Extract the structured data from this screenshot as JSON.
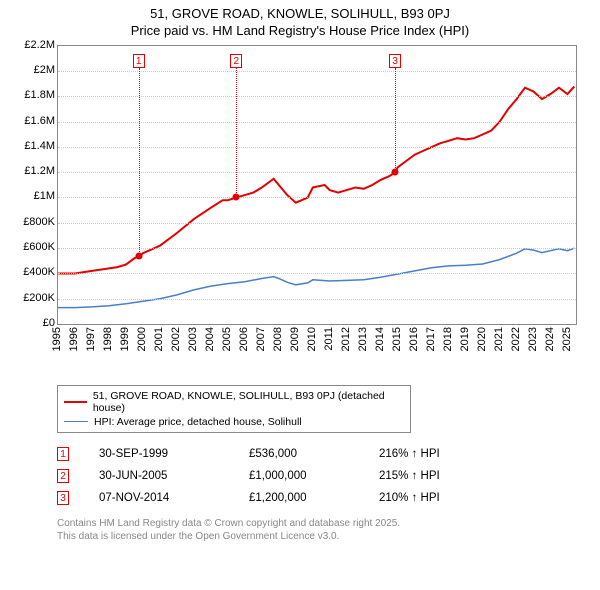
{
  "title": {
    "line1": "51, GROVE ROAD, KNOWLE, SOLIHULL, B93 0PJ",
    "line2": "Price paid vs. HM Land Registry's House Price Index (HPI)"
  },
  "chart": {
    "type": "line",
    "background_color": "#ffffff",
    "grid_color": "#cccccc",
    "axis_color": "#888888",
    "x_range": [
      1995,
      2025.5
    ],
    "y_range": [
      0,
      2200000
    ],
    "y_ticks": [
      {
        "v": 0,
        "label": "£0"
      },
      {
        "v": 200000,
        "label": "£200K"
      },
      {
        "v": 400000,
        "label": "£400K"
      },
      {
        "v": 600000,
        "label": "£600K"
      },
      {
        "v": 800000,
        "label": "£800K"
      },
      {
        "v": 1000000,
        "label": "£1M"
      },
      {
        "v": 1200000,
        "label": "£1.2M"
      },
      {
        "v": 1400000,
        "label": "£1.4M"
      },
      {
        "v": 1600000,
        "label": "£1.6M"
      },
      {
        "v": 1800000,
        "label": "£1.8M"
      },
      {
        "v": 2000000,
        "label": "£2M"
      },
      {
        "v": 2200000,
        "label": "£2.2M"
      }
    ],
    "x_ticks": [
      {
        "v": 1995,
        "label": "1995"
      },
      {
        "v": 1996,
        "label": "1996"
      },
      {
        "v": 1997,
        "label": "1997"
      },
      {
        "v": 1998,
        "label": "1998"
      },
      {
        "v": 1999,
        "label": "1999"
      },
      {
        "v": 2000,
        "label": "2000"
      },
      {
        "v": 2001,
        "label": "2001"
      },
      {
        "v": 2002,
        "label": "2002"
      },
      {
        "v": 2003,
        "label": "2003"
      },
      {
        "v": 2004,
        "label": "2004"
      },
      {
        "v": 2005,
        "label": "2005"
      },
      {
        "v": 2006,
        "label": "2006"
      },
      {
        "v": 2007,
        "label": "2007"
      },
      {
        "v": 2008,
        "label": "2008"
      },
      {
        "v": 2009,
        "label": "2009"
      },
      {
        "v": 2010,
        "label": "2010"
      },
      {
        "v": 2011,
        "label": "2011"
      },
      {
        "v": 2012,
        "label": "2012"
      },
      {
        "v": 2013,
        "label": "2013"
      },
      {
        "v": 2014,
        "label": "2014"
      },
      {
        "v": 2015,
        "label": "2015"
      },
      {
        "v": 2016,
        "label": "2016"
      },
      {
        "v": 2017,
        "label": "2017"
      },
      {
        "v": 2018,
        "label": "2018"
      },
      {
        "v": 2019,
        "label": "2019"
      },
      {
        "v": 2020,
        "label": "2020"
      },
      {
        "v": 2021,
        "label": "2021"
      },
      {
        "v": 2022,
        "label": "2022"
      },
      {
        "v": 2023,
        "label": "2023"
      },
      {
        "v": 2024,
        "label": "2024"
      },
      {
        "v": 2025,
        "label": "2025"
      }
    ],
    "series": [
      {
        "id": "property",
        "color": "#e20000",
        "line_width": 2,
        "points": [
          [
            1995,
            400000
          ],
          [
            1996,
            400000
          ],
          [
            1997,
            420000
          ],
          [
            1998,
            440000
          ],
          [
            1998.5,
            450000
          ],
          [
            1999,
            470000
          ],
          [
            1999.5,
            520000
          ],
          [
            1999.75,
            536000
          ],
          [
            2000,
            560000
          ],
          [
            2001,
            620000
          ],
          [
            2002,
            720000
          ],
          [
            2003,
            830000
          ],
          [
            2004,
            920000
          ],
          [
            2004.7,
            980000
          ],
          [
            2005,
            980000
          ],
          [
            2005.5,
            1000000
          ],
          [
            2006,
            1020000
          ],
          [
            2006.5,
            1040000
          ],
          [
            2007,
            1080000
          ],
          [
            2007.7,
            1150000
          ],
          [
            2008,
            1100000
          ],
          [
            2008.5,
            1020000
          ],
          [
            2009,
            960000
          ],
          [
            2009.7,
            1000000
          ],
          [
            2010,
            1080000
          ],
          [
            2010.7,
            1100000
          ],
          [
            2011,
            1060000
          ],
          [
            2011.5,
            1040000
          ],
          [
            2012,
            1060000
          ],
          [
            2012.5,
            1080000
          ],
          [
            2013,
            1070000
          ],
          [
            2013.5,
            1100000
          ],
          [
            2014,
            1140000
          ],
          [
            2014.5,
            1170000
          ],
          [
            2014.85,
            1200000
          ],
          [
            2015,
            1240000
          ],
          [
            2015.5,
            1290000
          ],
          [
            2016,
            1340000
          ],
          [
            2016.5,
            1370000
          ],
          [
            2017,
            1400000
          ],
          [
            2017.5,
            1430000
          ],
          [
            2018,
            1450000
          ],
          [
            2018.5,
            1470000
          ],
          [
            2019,
            1460000
          ],
          [
            2019.5,
            1470000
          ],
          [
            2020,
            1500000
          ],
          [
            2020.5,
            1530000
          ],
          [
            2021,
            1600000
          ],
          [
            2021.5,
            1700000
          ],
          [
            2022,
            1780000
          ],
          [
            2022.5,
            1870000
          ],
          [
            2023,
            1840000
          ],
          [
            2023.5,
            1780000
          ],
          [
            2024,
            1820000
          ],
          [
            2024.5,
            1870000
          ],
          [
            2025,
            1820000
          ],
          [
            2025.4,
            1880000
          ]
        ]
      },
      {
        "id": "hpi",
        "color": "#4a7ec8",
        "line_width": 1.5,
        "points": [
          [
            1995,
            130000
          ],
          [
            1996,
            130000
          ],
          [
            1997,
            135000
          ],
          [
            1998,
            145000
          ],
          [
            1999,
            160000
          ],
          [
            2000,
            180000
          ],
          [
            2001,
            200000
          ],
          [
            2002,
            230000
          ],
          [
            2003,
            270000
          ],
          [
            2004,
            300000
          ],
          [
            2005,
            320000
          ],
          [
            2006,
            335000
          ],
          [
            2007,
            360000
          ],
          [
            2007.7,
            375000
          ],
          [
            2008,
            360000
          ],
          [
            2008.5,
            330000
          ],
          [
            2009,
            310000
          ],
          [
            2009.7,
            325000
          ],
          [
            2010,
            350000
          ],
          [
            2011,
            340000
          ],
          [
            2012,
            345000
          ],
          [
            2013,
            350000
          ],
          [
            2014,
            370000
          ],
          [
            2015,
            395000
          ],
          [
            2016,
            420000
          ],
          [
            2017,
            445000
          ],
          [
            2018,
            460000
          ],
          [
            2019,
            465000
          ],
          [
            2020,
            475000
          ],
          [
            2021,
            510000
          ],
          [
            2022,
            560000
          ],
          [
            2022.5,
            595000
          ],
          [
            2023,
            585000
          ],
          [
            2023.5,
            565000
          ],
          [
            2024,
            580000
          ],
          [
            2024.5,
            595000
          ],
          [
            2025,
            580000
          ],
          [
            2025.4,
            600000
          ]
        ]
      }
    ],
    "markers": [
      {
        "n": "1",
        "x": 1999.75,
        "y": 536000,
        "color": "#e20000"
      },
      {
        "n": "2",
        "x": 2005.5,
        "y": 1000000,
        "color": "#e20000"
      },
      {
        "n": "3",
        "x": 2014.85,
        "y": 1200000,
        "color": "#e20000"
      }
    ]
  },
  "legend": {
    "items": [
      {
        "color": "#e20000",
        "width": 2,
        "label": "51, GROVE ROAD, KNOWLE, SOLIHULL, B93 0PJ (detached house)"
      },
      {
        "color": "#4a7ec8",
        "width": 1.5,
        "label": "HPI: Average price, detached house, Solihull"
      }
    ]
  },
  "sales": [
    {
      "n": "1",
      "color": "#e20000",
      "date": "30-SEP-1999",
      "price": "£536,000",
      "hpi": "216% ↑ HPI"
    },
    {
      "n": "2",
      "color": "#e20000",
      "date": "30-JUN-2005",
      "price": "£1,000,000",
      "hpi": "215% ↑ HPI"
    },
    {
      "n": "3",
      "color": "#e20000",
      "date": "07-NOV-2014",
      "price": "£1,200,000",
      "hpi": "210% ↑ HPI"
    }
  ],
  "footnote": {
    "line1": "Contains HM Land Registry data © Crown copyright and database right 2025.",
    "line2": "This data is licensed under the Open Government Licence v3.0."
  }
}
